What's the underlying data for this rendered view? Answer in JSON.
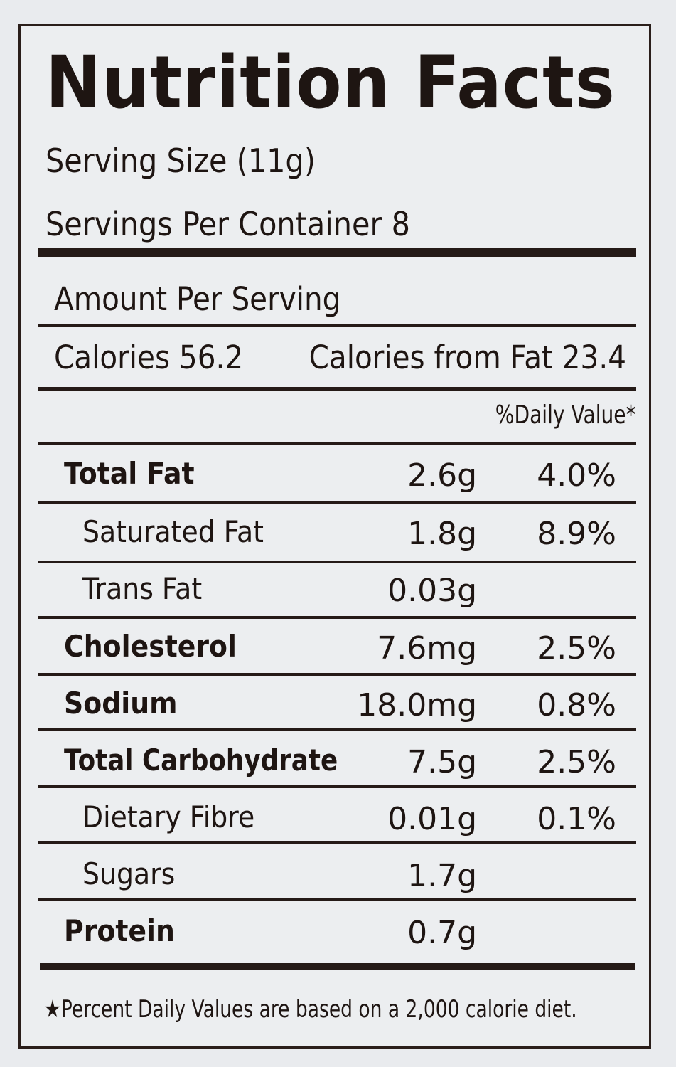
{
  "label": {
    "title": "Nutrition Facts",
    "serving_size": "Serving Size (11g)",
    "servings_per_container": "Servings Per Container 8",
    "amount_per_serving": "Amount Per Serving",
    "calories": "Calories 56.2",
    "calories_from_fat": "Calories from Fat 23.4",
    "daily_value_header": "%Daily Value*",
    "footnote": "★Percent Daily Values are based on a 2,000 calorie diet."
  },
  "nutrients": [
    {
      "name": "Total Fat",
      "amount": "2.6g",
      "dv": "4.0%"
    },
    {
      "name": "Saturated Fat",
      "amount": "1.8g",
      "dv": "8.9%"
    },
    {
      "name": "Trans Fat",
      "amount": "0.03g",
      "dv": ""
    },
    {
      "name": "Cholesterol",
      "amount": "7.6mg",
      "dv": "2.5%"
    },
    {
      "name": "Sodium",
      "amount": "18.0mg",
      "dv": "0.8%"
    },
    {
      "name": "Total Carbohydrate",
      "amount": "7.5g",
      "dv": "2.5%"
    },
    {
      "name": "Dietary Fibre",
      "amount": "0.01g",
      "dv": "0.1%"
    },
    {
      "name": "Sugars",
      "amount": "1.7g",
      "dv": ""
    },
    {
      "name": "Protein",
      "amount": "0.7g",
      "dv": ""
    }
  ]
}
